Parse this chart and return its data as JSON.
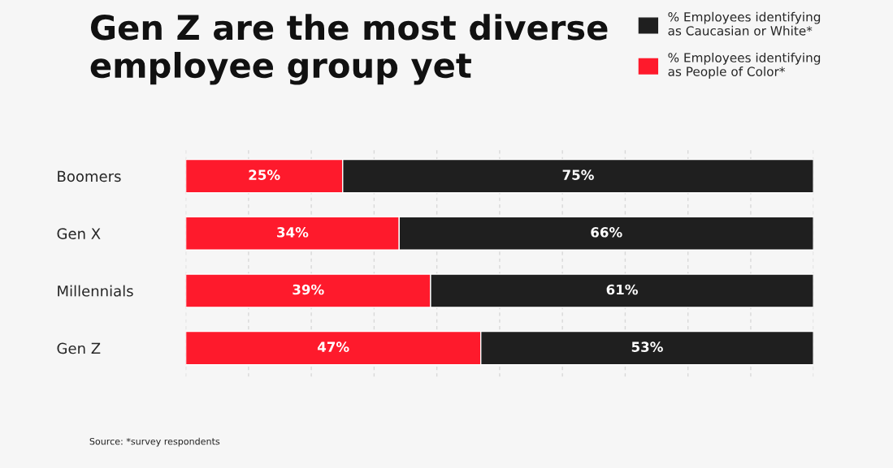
{
  "chart_data": {
    "type": "bar",
    "orientation": "horizontal",
    "stacked": true,
    "title": "Gen Z are the most diverse\nemployee group yet",
    "categories": [
      "Boomers",
      "Gen X",
      "Millennials",
      "Gen Z"
    ],
    "series": [
      {
        "name": "% Employees identifying\nas People of Color*",
        "color": "#fe1a2c",
        "values": [
          25,
          34,
          39,
          47
        ],
        "value_labels": [
          "25%",
          "34%",
          "39%",
          "47%"
        ]
      },
      {
        "name": "% Employees identifying\nas Caucasian or White*",
        "color": "#1f1f1f",
        "values": [
          75,
          66,
          61,
          53
        ],
        "value_labels": [
          "75%",
          "66%",
          "61%",
          "53%"
        ]
      }
    ],
    "tick_labels": "y",
    "grid": "x",
    "legend": "top right",
    "annotations": [
      "Source: *survey respondents"
    ]
  }
}
